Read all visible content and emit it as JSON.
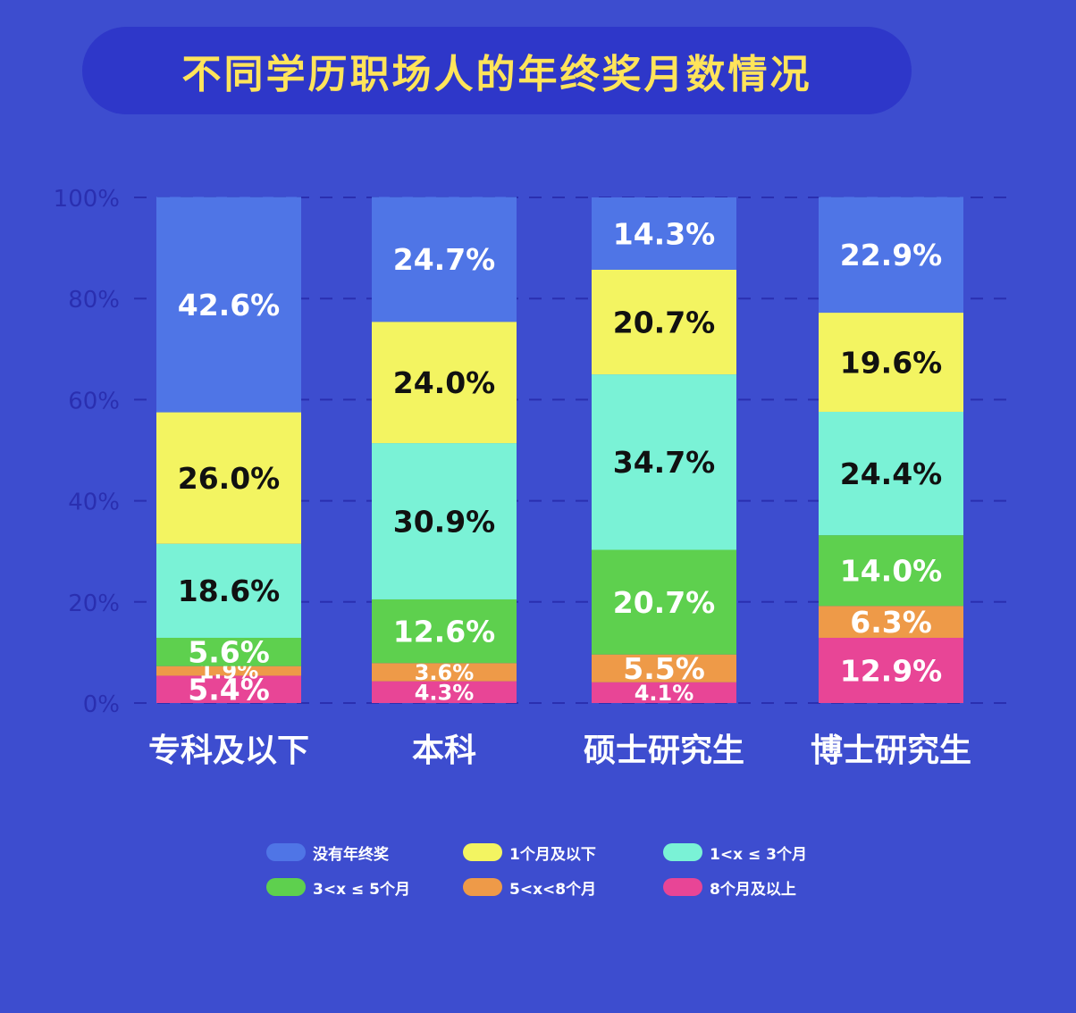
{
  "title": "不同学历职场人的年终奖月数情况",
  "colors": {
    "background": "#3d4dcf",
    "title_pill": "#2e37c9",
    "title_text": "#ffe45a",
    "axis_text": "#2a2fb0",
    "gridline": "#2a2fb0"
  },
  "chart_data": {
    "type": "bar",
    "stacked": true,
    "categories": [
      "专科及以下",
      "本科",
      "硕士研究生",
      "博士研究生"
    ],
    "ylim": [
      0,
      100
    ],
    "yticks": [
      "0%",
      "20%",
      "40%",
      "60%",
      "80%",
      "100%"
    ],
    "ytick_values": [
      0,
      20,
      40,
      60,
      80,
      100
    ],
    "grid": true,
    "legend_position": "bottom",
    "series": [
      {
        "name": "8个月及以上",
        "color": "#e84596",
        "label_color": "#ffffff",
        "values": [
          5.4,
          4.3,
          4.1,
          12.9
        ],
        "labels": [
          "5.4%",
          "4.3%",
          "4.1%",
          "12.9%"
        ]
      },
      {
        "name": "5<x<8个月",
        "color": "#ee9a48",
        "label_color": "#ffffff",
        "values": [
          1.9,
          3.6,
          5.5,
          6.3
        ],
        "labels": [
          "1.9%",
          "3.6%",
          "5.5%",
          "6.3%"
        ]
      },
      {
        "name": "3<x ≤ 5个月",
        "color": "#5ed04e",
        "label_color": "#ffffff",
        "values": [
          5.6,
          12.6,
          20.7,
          14.0
        ],
        "labels": [
          "5.6%",
          "12.6%",
          "20.7%",
          "14.0%"
        ]
      },
      {
        "name": "1<x ≤ 3个月",
        "color": "#7af2d6",
        "label_color": "#111111",
        "values": [
          18.6,
          30.9,
          34.7,
          24.4
        ],
        "labels": [
          "18.6%",
          "30.9%",
          "34.7%",
          "24.4%"
        ]
      },
      {
        "name": "1个月及以下",
        "color": "#f3f461",
        "label_color": "#111111",
        "values": [
          26.0,
          24.0,
          20.7,
          19.6
        ],
        "labels": [
          "26.0%",
          "24.0%",
          "20.7%",
          "19.6%"
        ]
      },
      {
        "name": "没有年终奖",
        "color": "#4f75e6",
        "label_color": "#ffffff",
        "values": [
          42.6,
          24.7,
          14.3,
          22.9
        ],
        "labels": [
          "42.6%",
          "24.7%",
          "14.3%",
          "22.9%"
        ]
      }
    ]
  },
  "legend": [
    {
      "label": "没有年终奖",
      "color": "#4f75e6"
    },
    {
      "label": "1个月及以下",
      "color": "#f3f461"
    },
    {
      "label": "1<x ≤ 3个月",
      "color": "#7af2d6"
    },
    {
      "label": "3<x ≤ 5个月",
      "color": "#5ed04e"
    },
    {
      "label": "5<x<8个月",
      "color": "#ee9a48"
    },
    {
      "label": "8个月及以上",
      "color": "#e84596"
    }
  ]
}
